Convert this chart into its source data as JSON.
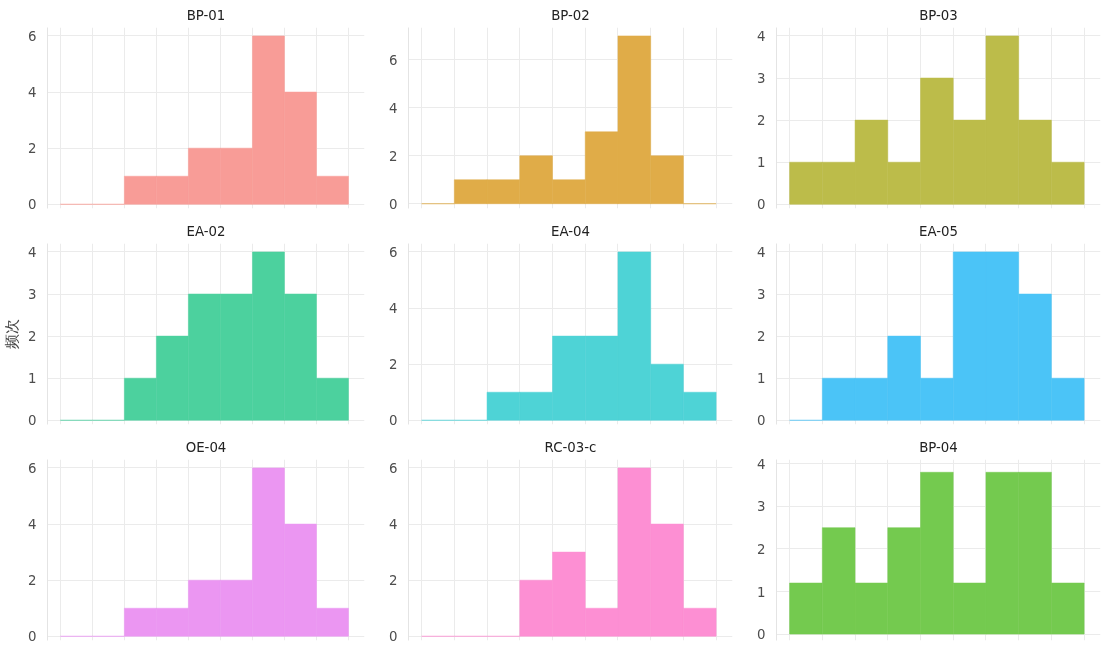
{
  "chart_data": [
    {
      "type": "bar",
      "title": "BP-01",
      "categories": [
        null,
        null,
        null,
        null,
        null,
        null,
        null,
        null,
        null
      ],
      "values": [
        0,
        0,
        1,
        1,
        2,
        2,
        6,
        4,
        1
      ],
      "color": "#f89c97",
      "ylim": [
        -0.15,
        6.3
      ],
      "yticks": [
        0,
        2,
        4,
        6
      ],
      "grid": true,
      "tick_labels": "y"
    },
    {
      "type": "bar",
      "title": "BP-02",
      "categories": [
        null,
        null,
        null,
        null,
        null,
        null,
        null,
        null,
        null
      ],
      "values": [
        0,
        1,
        1,
        2,
        1,
        3,
        7,
        2,
        0
      ],
      "color": "#e0ac48",
      "ylim": [
        -0.2,
        7.35
      ],
      "yticks": [
        0,
        2,
        4,
        6
      ],
      "grid": true,
      "tick_labels": "y"
    },
    {
      "type": "bar",
      "title": "BP-03",
      "categories": [
        null,
        null,
        null,
        null,
        null,
        null,
        null,
        null,
        null
      ],
      "values": [
        1,
        1,
        2,
        1,
        3,
        2,
        4,
        2,
        1
      ],
      "color": "#bcbc4a",
      "ylim": [
        -0.1,
        4.2
      ],
      "yticks": [
        0,
        1,
        2,
        3,
        4
      ],
      "grid": true,
      "tick_labels": "y"
    },
    {
      "type": "bar",
      "title": "EA-02",
      "ylabel": "频次",
      "categories": [
        null,
        null,
        null,
        null,
        null,
        null,
        null,
        null,
        null
      ],
      "values": [
        0,
        0,
        1,
        2,
        3,
        3,
        4,
        3,
        1
      ],
      "color": "#4cd19e",
      "ylim": [
        -0.1,
        4.2
      ],
      "yticks": [
        0,
        1,
        2,
        3,
        4
      ],
      "grid": true,
      "tick_labels": "y"
    },
    {
      "type": "bar",
      "title": "EA-04",
      "categories": [
        null,
        null,
        null,
        null,
        null,
        null,
        null,
        null,
        null
      ],
      "values": [
        0,
        0,
        1,
        1,
        3,
        3,
        6,
        2,
        1
      ],
      "color": "#4ed3d6",
      "ylim": [
        -0.15,
        6.3
      ],
      "yticks": [
        0,
        2,
        4,
        6
      ],
      "grid": true,
      "tick_labels": "y"
    },
    {
      "type": "bar",
      "title": "EA-05",
      "categories": [
        null,
        null,
        null,
        null,
        null,
        null,
        null,
        null,
        null
      ],
      "values": [
        0,
        1,
        1,
        2,
        1,
        4,
        4,
        3,
        1
      ],
      "color": "#4bc4f7",
      "ylim": [
        -0.1,
        4.2
      ],
      "yticks": [
        0,
        1,
        2,
        3,
        4
      ],
      "grid": true,
      "tick_labels": "y"
    },
    {
      "type": "bar",
      "title": "OE-04",
      "categories": [
        null,
        null,
        null,
        null,
        null,
        null,
        null,
        null,
        null
      ],
      "values": [
        0,
        0,
        1,
        1,
        2,
        2,
        6,
        4,
        1
      ],
      "color": "#eb96f2",
      "ylim": [
        -0.15,
        6.3
      ],
      "yticks": [
        0,
        2,
        4,
        6
      ],
      "grid": true,
      "tick_labels": "y"
    },
    {
      "type": "bar",
      "title": "RC-03-c",
      "categories": [
        null,
        null,
        null,
        null,
        null,
        null,
        null,
        null,
        null
      ],
      "values": [
        0,
        0,
        0,
        2,
        3,
        1,
        6,
        4,
        1
      ],
      "color": "#fd8fd3",
      "ylim": [
        -0.15,
        6.3
      ],
      "yticks": [
        0,
        2,
        4,
        6
      ],
      "grid": true,
      "tick_labels": "y"
    },
    {
      "type": "bar",
      "title": "BP-04",
      "categories": [
        null,
        null,
        null,
        null,
        null,
        null,
        null,
        null,
        null
      ],
      "values": [
        1.2,
        2.5,
        1.2,
        2.5,
        3.8,
        1.2,
        3.8,
        3.8,
        1.2
      ],
      "color": "#74ca4f",
      "ylim": [
        -0.15,
        4.1
      ],
      "yticks": [
        0,
        1,
        2,
        3,
        4
      ],
      "grid": true,
      "tick_labels": "y"
    }
  ]
}
